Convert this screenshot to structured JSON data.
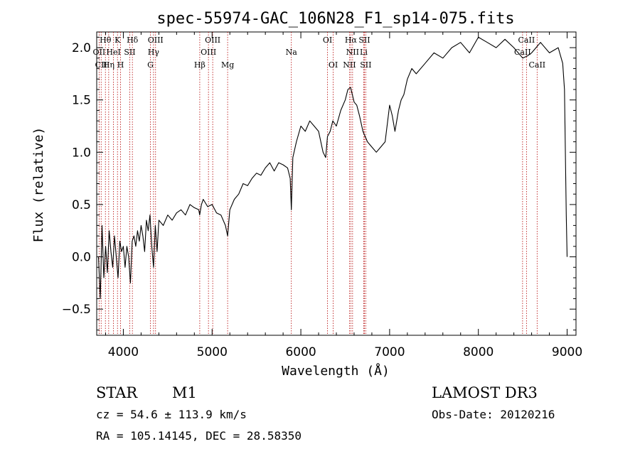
{
  "chart_data": {
    "type": "line",
    "title": "spec-55974-GAC_106N28_F1_sp14-075.fits",
    "xlabel": "Wavelength (Å)",
    "ylabel": "Flux (relative)",
    "xlim": [
      3700,
      9100
    ],
    "ylim": [
      -0.75,
      2.15
    ],
    "xticks": [
      4000,
      5000,
      6000,
      7000,
      8000,
      9000
    ],
    "yticks": [
      -0.5,
      0.0,
      0.5,
      1.0,
      1.5,
      2.0
    ],
    "xtick_labels": [
      "4000",
      "5000",
      "6000",
      "7000",
      "8000",
      "9000"
    ],
    "ytick_labels": [
      "−0.5",
      "0.0",
      "0.5",
      "1.0",
      "1.5",
      "2.0"
    ],
    "series": [
      {
        "name": "flux",
        "x": [
          3720,
          3740,
          3760,
          3780,
          3800,
          3820,
          3840,
          3860,
          3880,
          3900,
          3920,
          3940,
          3960,
          3980,
          4000,
          4020,
          4040,
          4060,
          4080,
          4100,
          4120,
          4140,
          4160,
          4180,
          4200,
          4220,
          4240,
          4260,
          4280,
          4300,
          4320,
          4340,
          4360,
          4380,
          4400,
          4450,
          4500,
          4550,
          4600,
          4650,
          4700,
          4750,
          4800,
          4850,
          4860,
          4880,
          4900,
          4950,
          5000,
          5050,
          5100,
          5150,
          5175,
          5200,
          5250,
          5300,
          5350,
          5400,
          5450,
          5500,
          5550,
          5600,
          5650,
          5700,
          5750,
          5800,
          5850,
          5880,
          5893,
          5910,
          5950,
          6000,
          6050,
          6100,
          6150,
          6200,
          6250,
          6280,
          6300,
          6330,
          6360,
          6400,
          6450,
          6500,
          6530,
          6560,
          6580,
          6600,
          6630,
          6660,
          6700,
          6750,
          6800,
          6850,
          6900,
          6950,
          7000,
          7030,
          7060,
          7100,
          7130,
          7160,
          7200,
          7250,
          7300,
          7400,
          7500,
          7600,
          7700,
          7800,
          7900,
          8000,
          8100,
          8200,
          8300,
          8400,
          8500,
          8550,
          8600,
          8650,
          8700,
          8800,
          8900,
          8950,
          8970,
          8990,
          9000
        ],
        "values": [
          0.0,
          -0.4,
          0.3,
          -0.2,
          0.1,
          -0.15,
          0.25,
          0.05,
          -0.1,
          0.2,
          0.0,
          -0.2,
          0.15,
          0.05,
          0.1,
          -0.1,
          0.1,
          0.0,
          -0.25,
          0.15,
          0.2,
          0.1,
          0.25,
          0.15,
          0.3,
          0.2,
          0.05,
          0.35,
          0.25,
          0.4,
          0.1,
          -0.1,
          0.3,
          0.05,
          0.35,
          0.3,
          0.4,
          0.35,
          0.42,
          0.45,
          0.4,
          0.5,
          0.47,
          0.45,
          0.4,
          0.5,
          0.55,
          0.48,
          0.5,
          0.42,
          0.4,
          0.3,
          0.2,
          0.45,
          0.55,
          0.6,
          0.7,
          0.68,
          0.75,
          0.8,
          0.78,
          0.85,
          0.9,
          0.82,
          0.9,
          0.88,
          0.85,
          0.75,
          0.45,
          0.95,
          1.1,
          1.25,
          1.2,
          1.3,
          1.25,
          1.2,
          1.0,
          0.95,
          1.15,
          1.2,
          1.3,
          1.25,
          1.4,
          1.5,
          1.6,
          1.62,
          1.55,
          1.48,
          1.45,
          1.35,
          1.2,
          1.1,
          1.05,
          1.0,
          1.05,
          1.1,
          1.45,
          1.35,
          1.2,
          1.4,
          1.5,
          1.55,
          1.7,
          1.8,
          1.75,
          1.85,
          1.95,
          1.9,
          2.0,
          2.05,
          1.95,
          2.1,
          2.05,
          2.0,
          2.08,
          2.0,
          1.9,
          1.92,
          1.95,
          2.0,
          2.05,
          1.95,
          2.0,
          1.85,
          1.6,
          0.4,
          0.0
        ]
      }
    ],
    "emission_lines": [
      {
        "label": "Hθ",
        "wavelength": 3798,
        "row": 0
      },
      {
        "label": "OII",
        "wavelength": 3727,
        "row": 1
      },
      {
        "label": "CII",
        "wavelength": 3750,
        "row": 2
      },
      {
        "label": "Hη",
        "wavelength": 3835,
        "row": 2
      },
      {
        "label": "HeI",
        "wavelength": 3889,
        "row": 1
      },
      {
        "label": "K",
        "wavelength": 3934,
        "row": 0
      },
      {
        "label": "SII",
        "wavelength": 4072,
        "row": 1
      },
      {
        "label": "H",
        "wavelength": 3969,
        "row": 2
      },
      {
        "label": "Hδ",
        "wavelength": 4102,
        "row": 0
      },
      {
        "label": "OIII",
        "wavelength": 4363,
        "row": 0
      },
      {
        "label": "Hγ",
        "wavelength": 4340,
        "row": 1
      },
      {
        "label": "G",
        "wavelength": 4305,
        "row": 2
      },
      {
        "label": "OIII",
        "wavelength": 5007,
        "row": 0
      },
      {
        "label": "OIII",
        "wavelength": 4959,
        "row": 1
      },
      {
        "label": "Hβ",
        "wavelength": 4861,
        "row": 2
      },
      {
        "label": "Mg",
        "wavelength": 5175,
        "row": 2
      },
      {
        "label": "Na",
        "wavelength": 5893,
        "row": 1
      },
      {
        "label": "OI",
        "wavelength": 6300,
        "row": 0
      },
      {
        "label": "OI",
        "wavelength": 6364,
        "row": 2
      },
      {
        "label": "Hα",
        "wavelength": 6563,
        "row": 0
      },
      {
        "label": "SII",
        "wavelength": 6716,
        "row": 0
      },
      {
        "label": "NII",
        "wavelength": 6583,
        "row": 1
      },
      {
        "label": "Li",
        "wavelength": 6708,
        "row": 1
      },
      {
        "label": "NII",
        "wavelength": 6548,
        "row": 2
      },
      {
        "label": "SII",
        "wavelength": 6731,
        "row": 2
      },
      {
        "label": "CaII",
        "wavelength": 8542,
        "row": 0
      },
      {
        "label": "CaII",
        "wavelength": 8498,
        "row": 1
      },
      {
        "label": "CaII",
        "wavelength": 8662,
        "row": 2
      }
    ],
    "colors": {
      "spectrum": "#000000",
      "line_markers": "#b30000",
      "axes": "#000000"
    }
  },
  "info": {
    "object_class": "STAR",
    "subclass": "M1",
    "survey": "LAMOST DR3",
    "redshift_text": "cz = 54.6 ± 113.9 km/s",
    "obs_date_text": "Obs-Date: 20120216",
    "coords_text": "RA = 105.14145, DEC =  28.58350"
  }
}
